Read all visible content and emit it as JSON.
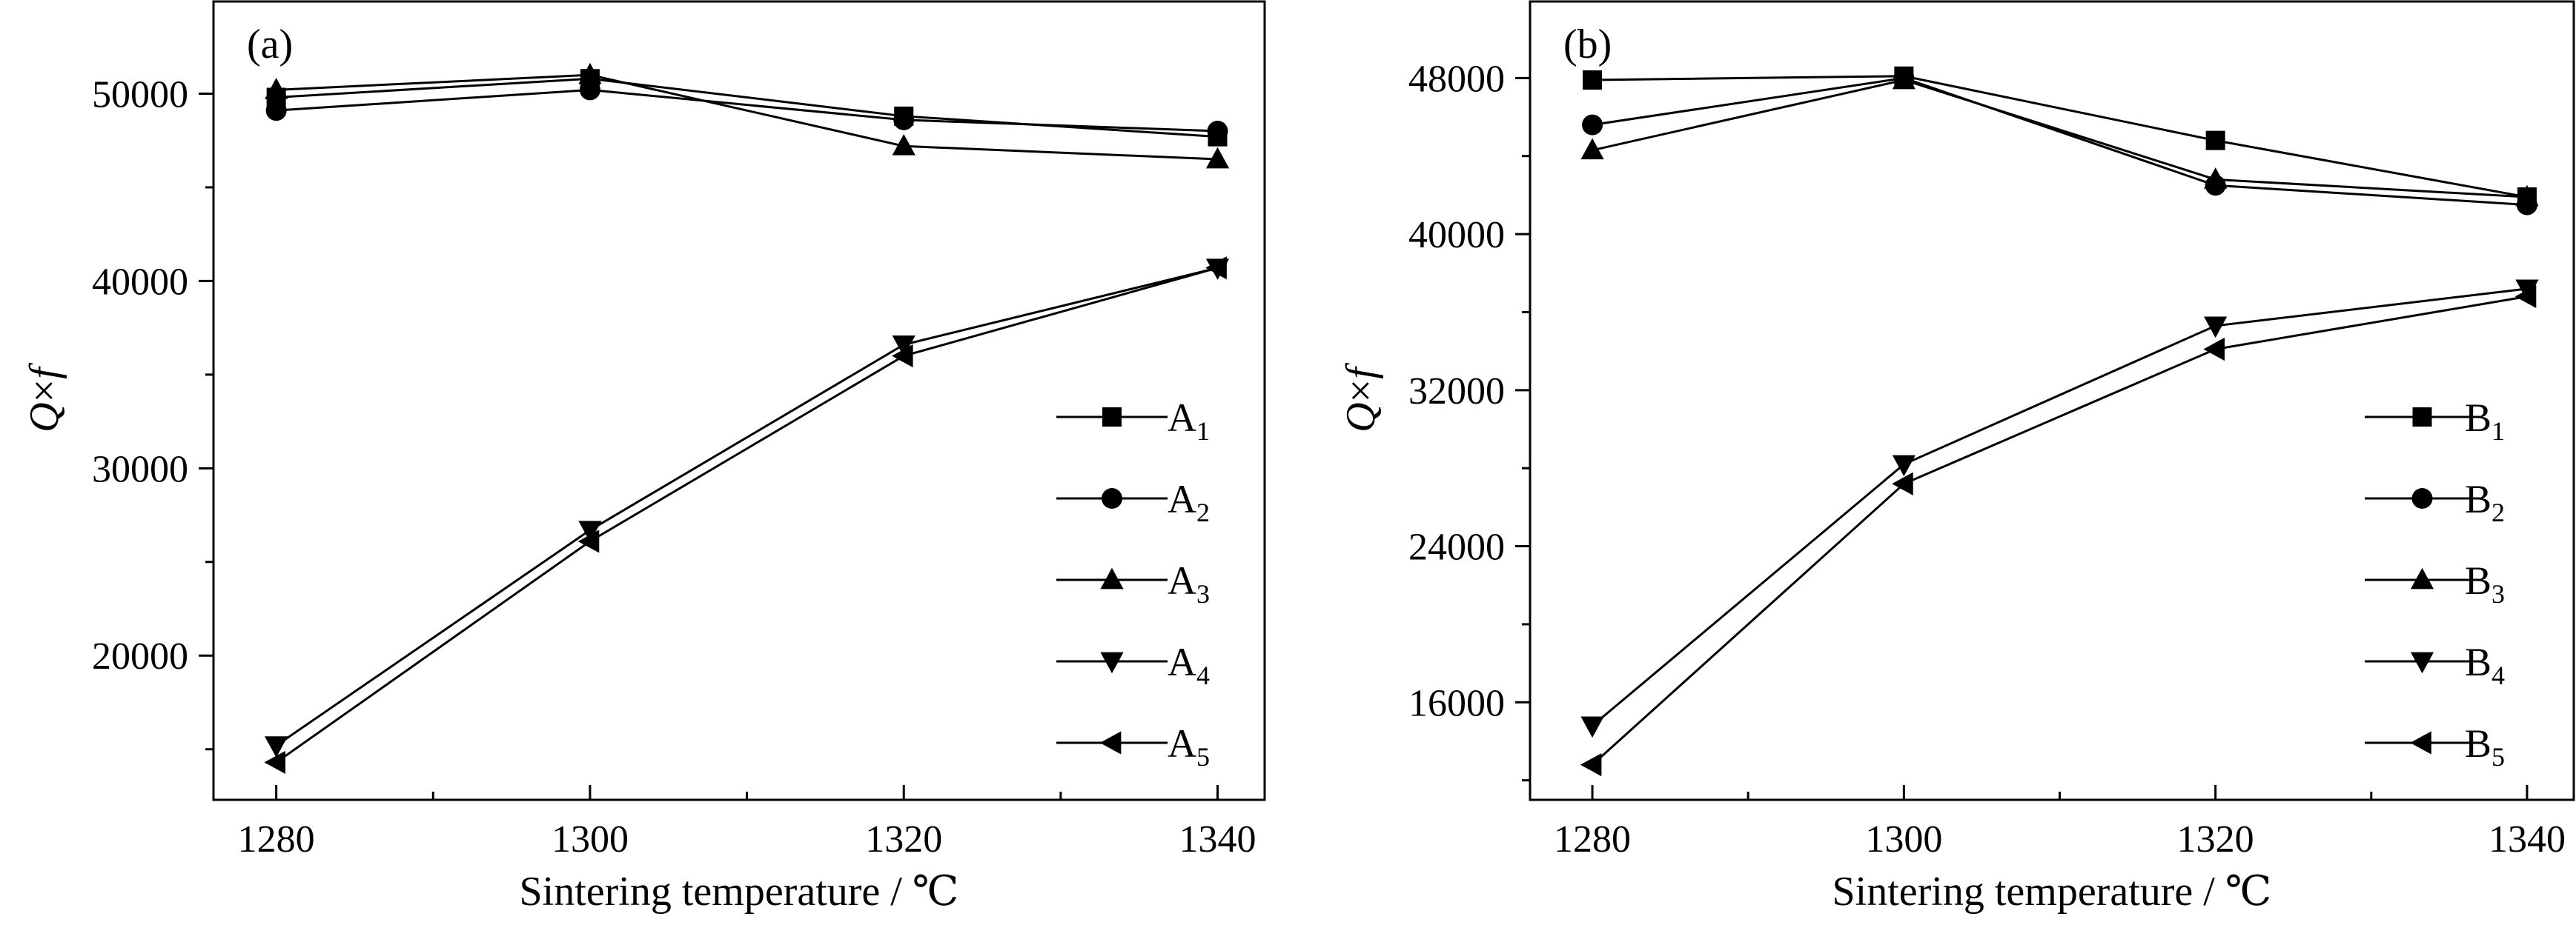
{
  "chart_data": [
    {
      "type": "line",
      "panel_label": "(a)",
      "xlabel": "Sintering temperature / ℃",
      "ylabel": "Q×f",
      "x": [
        1280,
        1300,
        1320,
        1340
      ],
      "xticks": [
        1280,
        1300,
        1320,
        1340
      ],
      "xlim": [
        1276,
        1343
      ],
      "yticks": [
        20000,
        30000,
        40000,
        50000
      ],
      "ylim": [
        12300,
        55000
      ],
      "grid": false,
      "legend_position": "right",
      "series": [
        {
          "name": "A",
          "sub": "1",
          "marker": "square",
          "values": [
            49800,
            50800,
            48800,
            47700
          ]
        },
        {
          "name": "A",
          "sub": "2",
          "marker": "circle",
          "values": [
            49100,
            50200,
            48600,
            48000
          ]
        },
        {
          "name": "A",
          "sub": "3",
          "marker": "triangle-up",
          "values": [
            50200,
            51000,
            47200,
            46500
          ]
        },
        {
          "name": "A",
          "sub": "4",
          "marker": "triangle-down",
          "values": [
            15200,
            26700,
            36600,
            40700
          ]
        },
        {
          "name": "A",
          "sub": "5",
          "marker": "triangle-left",
          "values": [
            14300,
            26100,
            36000,
            40700
          ]
        }
      ]
    },
    {
      "type": "line",
      "panel_label": "(b)",
      "xlabel": "Sintering temperature / ℃",
      "ylabel": "Q×f",
      "x": [
        1280,
        1300,
        1320,
        1340
      ],
      "xticks": [
        1280,
        1300,
        1320,
        1340
      ],
      "xlim": [
        1276,
        1343
      ],
      "yticks": [
        16000,
        24000,
        32000,
        40000,
        48000
      ],
      "ylim": [
        11000,
        52000
      ],
      "grid": false,
      "legend_position": "right",
      "series": [
        {
          "name": "B",
          "sub": "1",
          "marker": "square",
          "values": [
            47900,
            48100,
            44800,
            41900
          ]
        },
        {
          "name": "B",
          "sub": "2",
          "marker": "circle",
          "values": [
            45600,
            48000,
            42500,
            41500
          ]
        },
        {
          "name": "B",
          "sub": "3",
          "marker": "triangle-up",
          "values": [
            44300,
            47900,
            42800,
            41900
          ]
        },
        {
          "name": "B",
          "sub": "4",
          "marker": "triangle-down",
          "values": [
            14800,
            28200,
            35300,
            37200
          ]
        },
        {
          "name": "B",
          "sub": "5",
          "marker": "triangle-left",
          "values": [
            12800,
            27200,
            34100,
            36800
          ]
        }
      ]
    }
  ]
}
